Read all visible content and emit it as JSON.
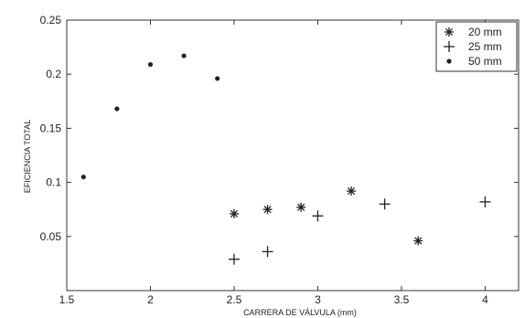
{
  "chart_data": {
    "type": "scatter",
    "xlabel": "CARRERA DE VÁLVULA (mm)",
    "ylabel": "EFICIENCIA TOTAL",
    "xlim": [
      1.5,
      4.2
    ],
    "ylim": [
      0.0,
      0.25
    ],
    "x_ticks": [
      1.5,
      2,
      2.5,
      3,
      3.5,
      4
    ],
    "x_tick_labels": [
      "1.5",
      "2",
      "2.5",
      "3",
      "3.5",
      "4"
    ],
    "y_ticks": [
      0.05,
      0.1,
      0.15,
      0.2,
      0.25
    ],
    "y_tick_labels": [
      "0.05",
      "0.1",
      "0.15",
      "0.2",
      "0.25"
    ],
    "grid": false,
    "legend_position": "top-right",
    "series": [
      {
        "name": "20 mm",
        "marker": "asterisk",
        "x": [
          2.5,
          2.7,
          2.9,
          3.2,
          3.6
        ],
        "y": [
          0.071,
          0.075,
          0.077,
          0.092,
          0.046
        ]
      },
      {
        "name": "25 mm",
        "marker": "plus",
        "x": [
          2.5,
          2.7,
          3.0,
          3.4,
          4.0
        ],
        "y": [
          0.029,
          0.036,
          0.069,
          0.08,
          0.082
        ]
      },
      {
        "name": "50 mm",
        "marker": "dot",
        "x": [
          1.6,
          1.8,
          2.0,
          2.2,
          2.4
        ],
        "y": [
          0.105,
          0.168,
          0.209,
          0.217,
          0.196
        ]
      }
    ]
  }
}
